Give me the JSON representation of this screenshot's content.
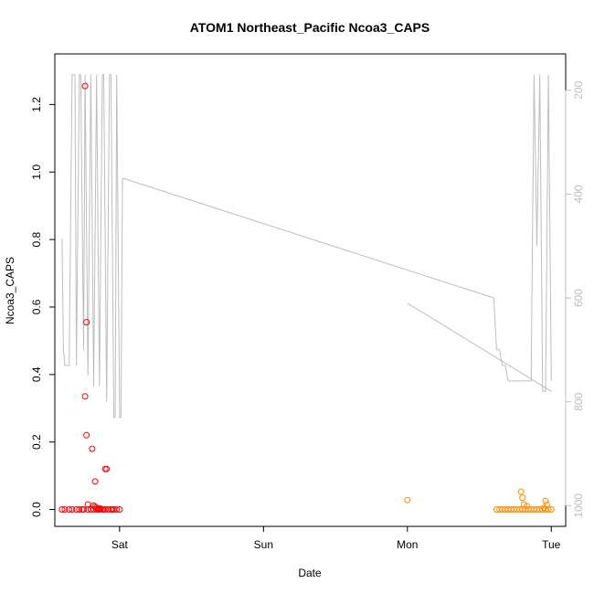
{
  "chart_data": {
    "type": "scatter",
    "title": "ATOM1 Northeast_Pacific Ncoa3_CAPS",
    "xlabel": "Date",
    "ylabel": "Ncoa3_CAPS",
    "x_ticks": [
      "Sat",
      "Sun",
      "Mon",
      "Tue"
    ],
    "y_ticks": [
      "0.0",
      "0.2",
      "0.4",
      "0.6",
      "0.8",
      "1.0",
      "1.2"
    ],
    "y_right_ticks": [
      "200",
      "400",
      "600",
      "800",
      "1000"
    ],
    "ylim": [
      0,
      1.3
    ],
    "y_right_lim_top_to_bottom": [
      170,
      1020
    ],
    "grid": false,
    "legend": "none",
    "colors": {
      "cruise1": "#ff0000",
      "cruise2": "#ff8c00",
      "depth_line": "#bdbdbd"
    },
    "series": [
      {
        "color_key": "cruise1",
        "x": [
          -0.4,
          -0.38,
          -0.35,
          -0.33,
          -0.3,
          -0.28,
          -0.26,
          -0.25,
          -0.22,
          -0.2,
          -0.18,
          -0.16,
          -0.15,
          -0.14,
          -0.12,
          -0.11,
          -0.1,
          -0.08,
          -0.06,
          -0.05,
          -0.04,
          -0.02,
          0.0,
          -0.24,
          -0.23,
          -0.19,
          -0.17,
          -0.1,
          -0.09,
          -0.24,
          -0.23,
          -0.22,
          -0.18,
          -0.17,
          -0.16,
          -0.14,
          -0.13
        ],
        "y": [
          0,
          0,
          0,
          0,
          0,
          0,
          0,
          0,
          0,
          0,
          0,
          0,
          0,
          0,
          0,
          0,
          0,
          0,
          0,
          0,
          0,
          0,
          0,
          1.255,
          0.555,
          0.18,
          0.083,
          0.12,
          0.12,
          0.335,
          0.22,
          0.015,
          0.012,
          0.008,
          0.005,
          0.003,
          0.002
        ]
      },
      {
        "color_key": "cruise2",
        "x": [
          2.0,
          2.62,
          2.64,
          2.66,
          2.68,
          2.7,
          2.72,
          2.74,
          2.76,
          2.78,
          2.8,
          2.82,
          2.84,
          2.86,
          2.88,
          2.9,
          2.92,
          2.94,
          2.96,
          2.98,
          3.0,
          2.79,
          2.8,
          2.81,
          2.83,
          2.96,
          2.97,
          2.95
        ],
        "y": [
          0.028,
          0,
          0,
          0,
          0,
          0,
          0,
          0,
          0,
          0,
          0,
          0,
          0,
          0,
          0,
          0,
          0,
          0,
          0,
          0,
          0,
          0.053,
          0.035,
          0.015,
          0.01,
          0.025,
          0.015,
          0.005
        ]
      }
    ],
    "depth_line": {
      "color_key": "depth_line",
      "segments": [
        {
          "x": [
            -0.4,
            -0.39,
            -0.38,
            -0.35,
            -0.33,
            -0.31,
            -0.3,
            -0.28,
            -0.27,
            -0.25,
            -0.24,
            -0.22,
            -0.2,
            -0.18,
            -0.16,
            -0.14,
            -0.12,
            -0.11,
            -0.09,
            -0.07,
            -0.06,
            -0.04,
            -0.03,
            -0.02,
            0.0,
            0.01,
            0.02,
            0.03,
            2.6,
            2.6,
            2.62,
            2.64,
            2.66,
            2.68,
            2.7,
            2.72,
            2.74,
            2.76,
            2.78,
            2.8,
            2.82,
            2.84,
            2.86,
            2.88,
            2.9,
            2.92,
            2.94,
            2.96,
            2.98,
            3.0
          ],
          "y": [
            486,
            700,
            730,
            730,
            170,
            170,
            730,
            170,
            170,
            700,
            170,
            750,
            170,
            770,
            170,
            770,
            170,
            170,
            800,
            170,
            170,
            830,
            830,
            170,
            830,
            830,
            370,
            370,
            600,
            600,
            700,
            700,
            730,
            730,
            760,
            760,
            760,
            760,
            760,
            760,
            760,
            760,
            760,
            170,
            500,
            170,
            780,
            780,
            170,
            760
          ]
        },
        {
          "x": [
            2.0,
            3.0
          ],
          "y": [
            610,
            780
          ]
        }
      ]
    }
  }
}
